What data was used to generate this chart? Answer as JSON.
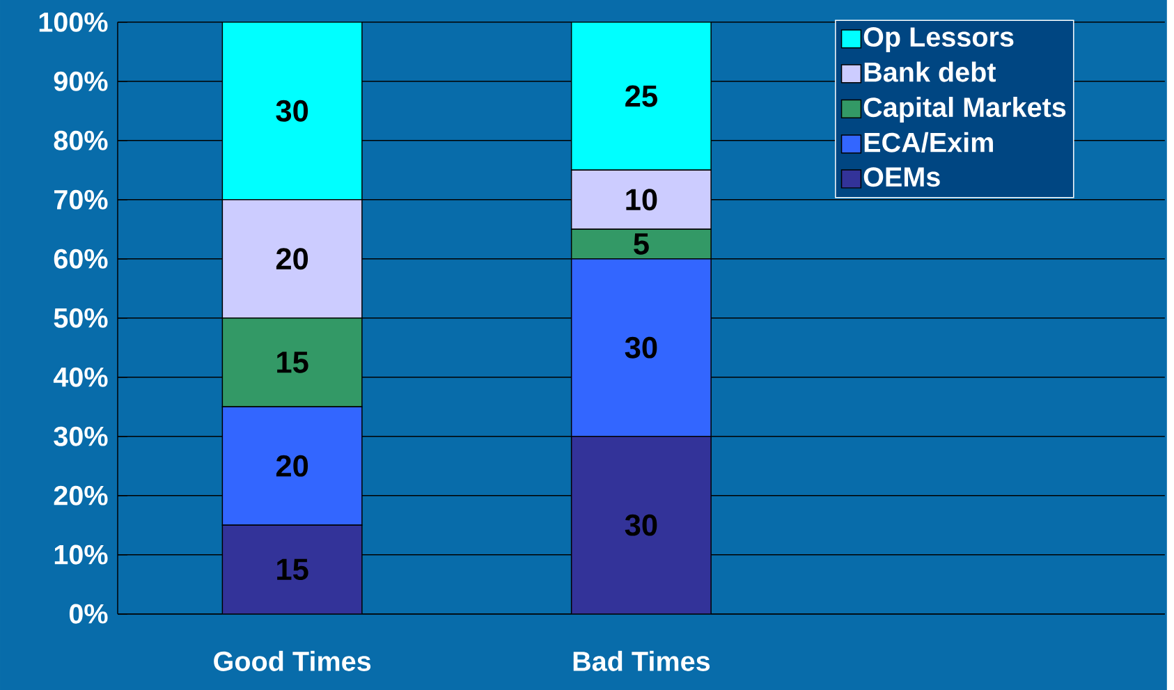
{
  "chart_data": {
    "type": "bar",
    "stacked": true,
    "categories": [
      "Good Times",
      "Bad Times",
      null
    ],
    "series": [
      {
        "name": "OEMs",
        "color": "#333399",
        "values": [
          15,
          30,
          null
        ]
      },
      {
        "name": "ECA/Exim",
        "color": "#3366ff",
        "values": [
          20,
          30,
          null
        ]
      },
      {
        "name": "Capital Markets",
        "color": "#339966",
        "values": [
          15,
          5,
          null
        ]
      },
      {
        "name": "Bank debt",
        "color": "#ccccff",
        "values": [
          20,
          10,
          null
        ]
      },
      {
        "name": "Op Lessors",
        "color": "#00ffff",
        "values": [
          30,
          25,
          null
        ]
      }
    ],
    "ylim": [
      0,
      100
    ],
    "yticks": [
      {
        "value": 0,
        "label": "0%"
      },
      {
        "value": 10,
        "label": "10%"
      },
      {
        "value": 20,
        "label": "20%"
      },
      {
        "value": 30,
        "label": "30%"
      },
      {
        "value": 40,
        "label": "40%"
      },
      {
        "value": 50,
        "label": "50%"
      },
      {
        "value": 60,
        "label": "60%"
      },
      {
        "value": 70,
        "label": "70%"
      },
      {
        "value": 80,
        "label": "80%"
      },
      {
        "value": 90,
        "label": "90%"
      },
      {
        "value": 100,
        "label": "100%"
      }
    ],
    "grid": "y",
    "legend": "top right",
    "data_labels": true
  }
}
